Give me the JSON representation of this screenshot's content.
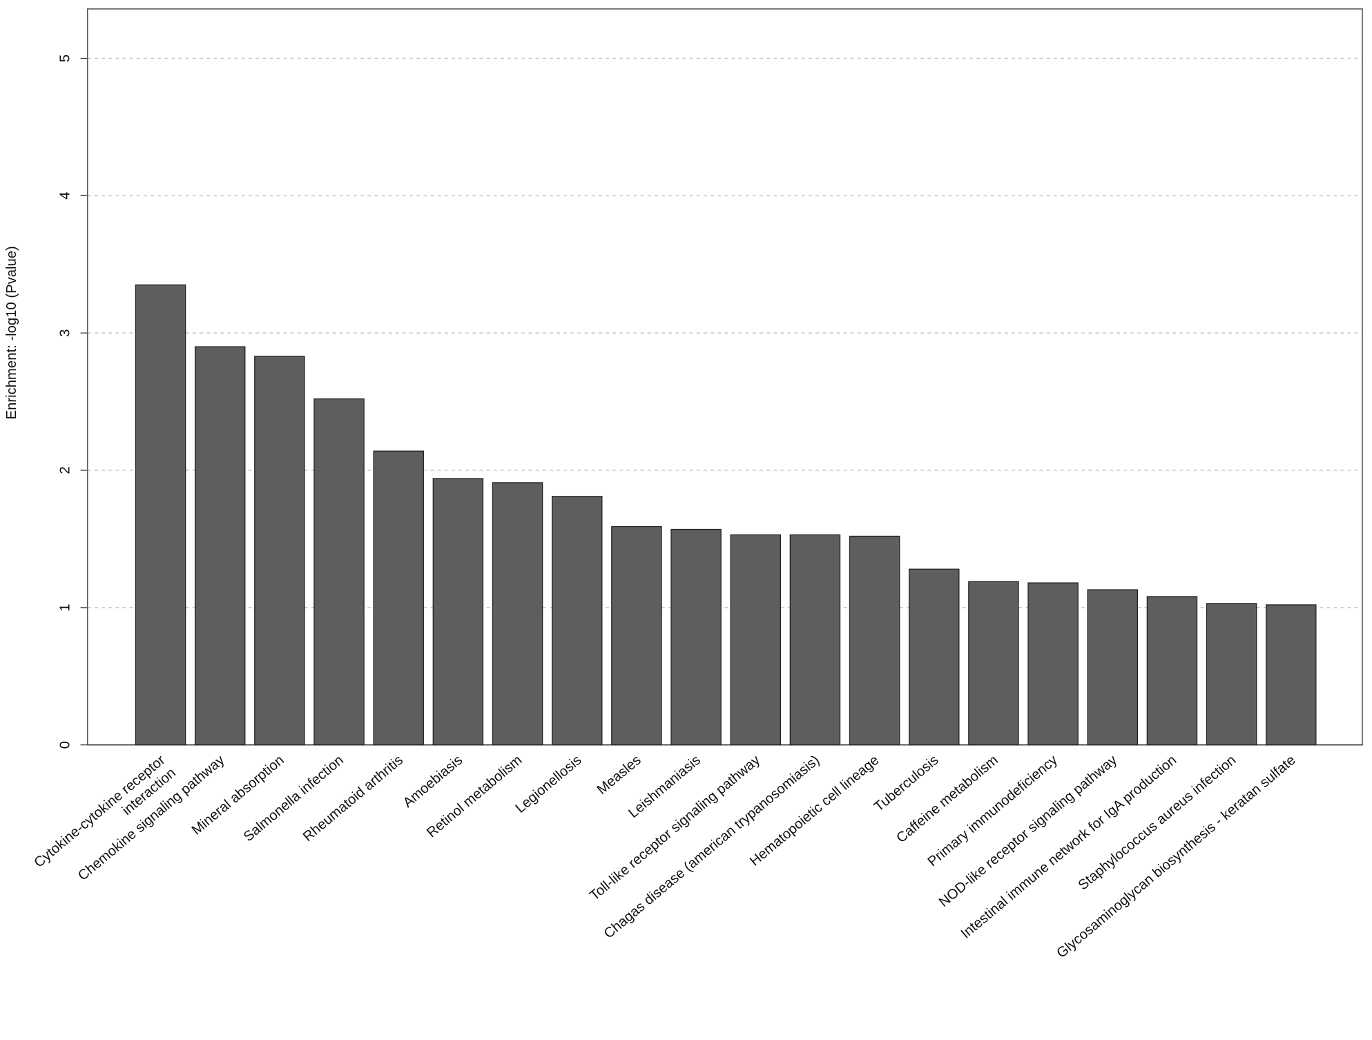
{
  "chart_data": {
    "type": "bar",
    "y_label": "Enrichment: -log10 (Pvalue)",
    "categories": [
      "Cytokine-cytokine receptor\ninteraction",
      "Chemokine signaling pathway",
      "Mineral absorption",
      "Salmonella infection",
      "Rheumatoid arthritis",
      "Amoebiasis",
      "Retinol metabolism",
      "Legionellosis",
      "Measles",
      "Leishmaniasis",
      "Toll-like receptor signaling pathway",
      "Chagas disease (american trypanosomiasis)",
      "Hematopoietic cell lineage",
      "Tuberculosis",
      "Caffeine metabolism",
      "Primary immunodeficiency",
      "NOD-like receptor signaling pathway",
      "Intestinal immune network for IgA production",
      "Staphylococcus aureus infection",
      "Glycosaminoglycan biosynthesis - keratan sulfate"
    ],
    "values": [
      3.35,
      2.9,
      2.83,
      2.52,
      2.14,
      1.94,
      1.91,
      1.81,
      1.59,
      1.57,
      1.53,
      1.53,
      1.52,
      1.28,
      1.19,
      1.18,
      1.13,
      1.08,
      1.03,
      1.02
    ],
    "color": "#5e5e5e",
    "ylim": [
      0,
      5.36
    ],
    "yticks": [
      0,
      1,
      2,
      3,
      4,
      5
    ],
    "grid": true
  }
}
